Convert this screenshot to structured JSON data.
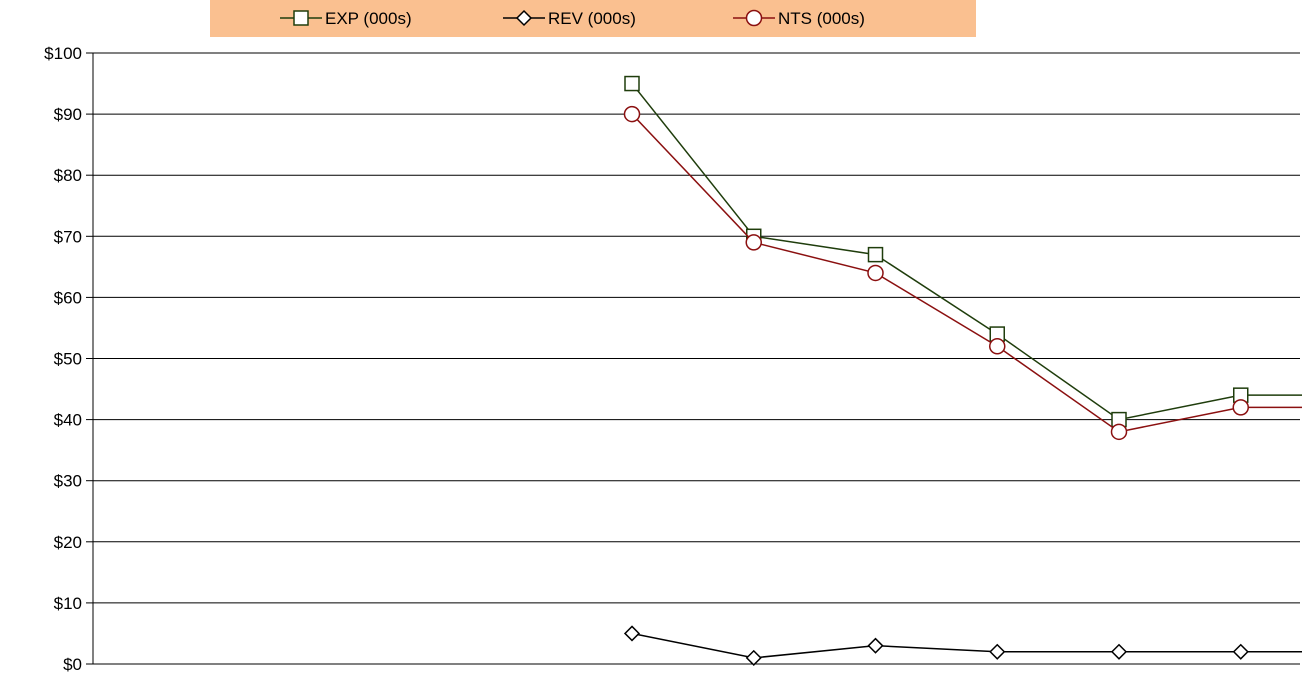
{
  "chart_data": {
    "type": "line",
    "categories": [
      "",
      "",
      "",
      "",
      "",
      "",
      "",
      "",
      "",
      "",
      ""
    ],
    "series": [
      {
        "name": "EXP (000s)",
        "color": "#1f3d0c",
        "marker": "square",
        "values": [
          null,
          null,
          null,
          null,
          95,
          70,
          67,
          54,
          40,
          44,
          44
        ]
      },
      {
        "name": "REV (000s)",
        "color": "#000000",
        "marker": "diamond",
        "values": [
          null,
          null,
          null,
          null,
          5,
          1,
          3,
          2,
          2,
          2,
          2
        ]
      },
      {
        "name": "NTS (000s)",
        "color": "#8b1010",
        "marker": "circle",
        "values": [
          null,
          null,
          null,
          null,
          90,
          69,
          64,
          52,
          38,
          42,
          42
        ]
      }
    ],
    "y_ticks": [
      "$0",
      "$10",
      "$20",
      "$30",
      "$40",
      "$50",
      "$60",
      "$70",
      "$80",
      "$90",
      "$100"
    ],
    "ylim": [
      0,
      100
    ],
    "grid": true,
    "legend_position": "top",
    "legend_background": "#fac090"
  }
}
